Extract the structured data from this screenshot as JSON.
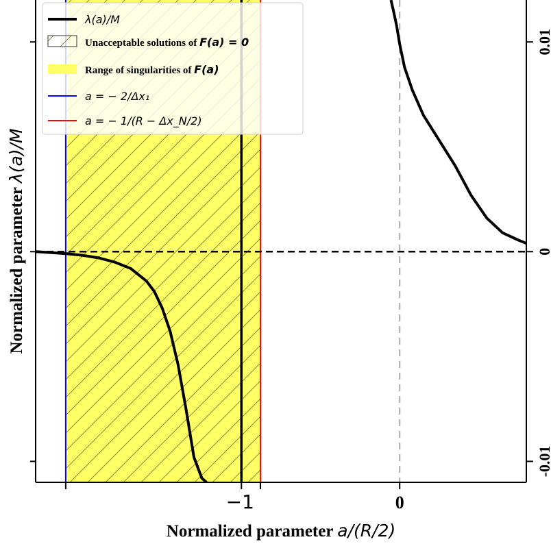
{
  "chart_data": {
    "type": "line",
    "xlabel_text": "Normalized parameter ",
    "xlabel_math": "a/(R/2)",
    "ylabel_text": "Normalized parameter ",
    "ylabel_math": "λ(a)/M",
    "xlim": [
      -2.3,
      0.8
    ],
    "ylim": [
      -0.011,
      0.012
    ],
    "x_ticks": [
      {
        "value": -2.11,
        "label": ""
      },
      {
        "value": -1.0,
        "label": "−1"
      },
      {
        "value": -0.88,
        "label": ""
      },
      {
        "value": 0,
        "label": "0"
      }
    ],
    "y_ticks": [
      {
        "value": 0.01,
        "label": "0.01"
      },
      {
        "value": 0,
        "label": "0"
      },
      {
        "value": -0.01,
        "label": "-0.01"
      }
    ],
    "legend_placement": "top-left",
    "series": [
      {
        "name": "λ(a)/M",
        "color": "#000000",
        "style": "solid",
        "x": [
          -2.3,
          -2.2,
          -2.1,
          -2.0,
          -1.9,
          -1.8,
          -1.7,
          -1.6,
          -1.55,
          -1.5,
          -1.45,
          -1.4,
          -1.35,
          -1.3,
          -1.25,
          -1.22
        ],
        "y": [
          0.0,
          -5e-05,
          -0.0001,
          -0.00018,
          -0.0003,
          -0.0005,
          -0.0008,
          -0.0014,
          -0.0019,
          -0.0027,
          -0.0038,
          -0.0054,
          -0.0075,
          -0.0098,
          -0.0108,
          -0.011
        ]
      },
      {
        "name": "λ(a)/M",
        "color": "#000000",
        "style": "solid",
        "x": [
          -0.055,
          -0.04,
          -0.02,
          0.0,
          0.03,
          0.08,
          0.15,
          0.25,
          0.35,
          0.45,
          0.55,
          0.65,
          0.75,
          0.8
        ],
        "y": [
          0.012,
          0.0115,
          0.0108,
          0.0099,
          0.0088,
          0.0077,
          0.0065,
          0.0053,
          0.0041,
          0.0027,
          0.0016,
          0.0009,
          0.00055,
          0.0004
        ]
      }
    ],
    "legend": [
      {
        "label": "λ(a)/M",
        "kind": "line",
        "color": "#000000"
      },
      {
        "label_text": "Unacceptable solutions of ",
        "label_math": "F(a) = 0",
        "kind": "hatch"
      },
      {
        "label_text": "Range of singularities of ",
        "label_math": "F(a)",
        "kind": "fill",
        "color": "#ffff66"
      },
      {
        "label": "a = − 2/Δx₁",
        "kind": "line",
        "color": "#0000ff"
      },
      {
        "label": "a = − 1/(R − Δx_N/2)",
        "kind": "line",
        "color": "#ff0000"
      }
    ],
    "vertical_lines": [
      {
        "x": -2.11,
        "color": "#0000ff",
        "style": "solid"
      },
      {
        "x": -0.88,
        "color": "#ff0000",
        "style": "solid"
      },
      {
        "x": -1.0,
        "color": "#000000",
        "style": "solid"
      },
      {
        "x": 0,
        "color": "#aaaaaa",
        "style": "dashed"
      }
    ],
    "horizontal_lines": [
      {
        "y": 0,
        "color": "#000000",
        "style": "dashed"
      }
    ],
    "singularity_range": [
      -2.11,
      -0.88
    ],
    "colors": {
      "fill": "#ffff66",
      "hatch": "#8a8a3a"
    }
  }
}
